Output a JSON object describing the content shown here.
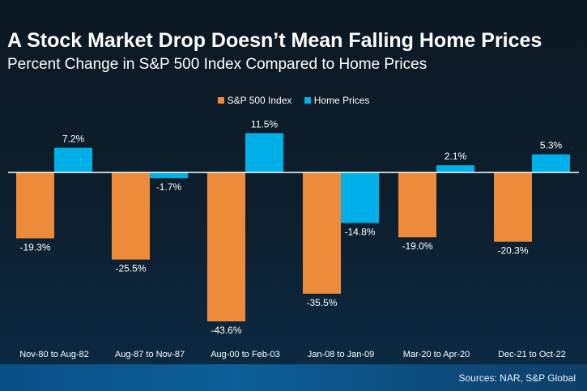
{
  "chart_data": {
    "type": "bar",
    "title": "A Stock Market Drop Doesn’t Mean Falling Home Prices",
    "subtitle": "Percent Change in S&P 500 Index Compared to Home Prices",
    "categories": [
      "Nov-80 to Aug-82",
      "Aug-87 to Nov-87",
      "Aug-00 to Feb-03",
      "Jan-08 to Jan-09",
      "Mar-20 to Apr-20",
      "Dec-21 to Oct-22"
    ],
    "series": [
      {
        "name": "S&P 500 Index",
        "color": "#ED8B3A",
        "values": [
          -19.3,
          -25.5,
          -43.6,
          -35.5,
          -19.0,
          -20.3
        ],
        "labels": [
          "-19.3%",
          "-25.5%",
          "-43.6%",
          "-35.5%",
          "-19.0%",
          "-20.3%"
        ]
      },
      {
        "name": "Home Prices",
        "color": "#00B0E8",
        "values": [
          7.2,
          -1.7,
          11.5,
          -14.8,
          2.1,
          5.3
        ],
        "labels": [
          "7.2%",
          "-1.7%",
          "11.5%",
          "-14.8%",
          "2.1%",
          "5.3%"
        ]
      }
    ],
    "legend": "top-center",
    "grid": false
  },
  "footer": {
    "sources": "Sources: NAR, S&P Global"
  }
}
